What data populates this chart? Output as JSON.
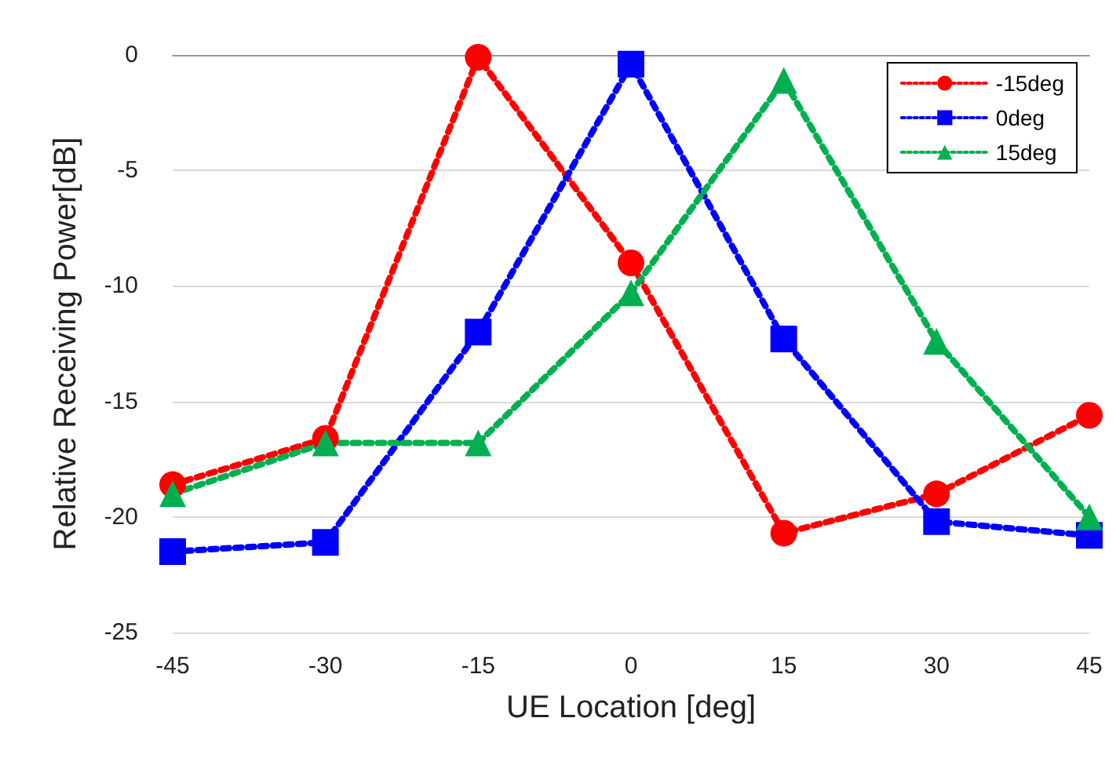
{
  "chart_data": {
    "type": "line",
    "xlabel": "UE Location [deg]",
    "ylabel": "Relative Receiving Power[dB]",
    "x": [
      -45,
      -30,
      -15,
      0,
      15,
      30,
      45
    ],
    "series": [
      {
        "name": "-15deg",
        "color": "#ff0000",
        "marker": "circle",
        "values": [
          -18.6,
          -16.6,
          -0.1,
          -9.0,
          -20.7,
          -19.0,
          -15.6
        ]
      },
      {
        "name": "0deg",
        "color": "#0000ff",
        "marker": "square",
        "values": [
          -21.5,
          -21.1,
          -12.0,
          -0.4,
          -12.3,
          -20.2,
          -20.8
        ]
      },
      {
        "name": "15deg",
        "color": "#00b050",
        "marker": "triangle",
        "values": [
          -19.0,
          -16.8,
          -16.8,
          -10.3,
          -1.1,
          -12.4,
          -20.0
        ]
      }
    ],
    "xlim": [
      -45,
      45
    ],
    "xticks": [
      -45,
      -30,
      -15,
      0,
      15,
      30,
      45
    ],
    "ylim": [
      -25,
      0
    ],
    "yticks": [
      -25,
      -20,
      -15,
      -10,
      -5,
      0
    ],
    "grid": "y",
    "legend": "top right",
    "line_style": "dotted"
  }
}
